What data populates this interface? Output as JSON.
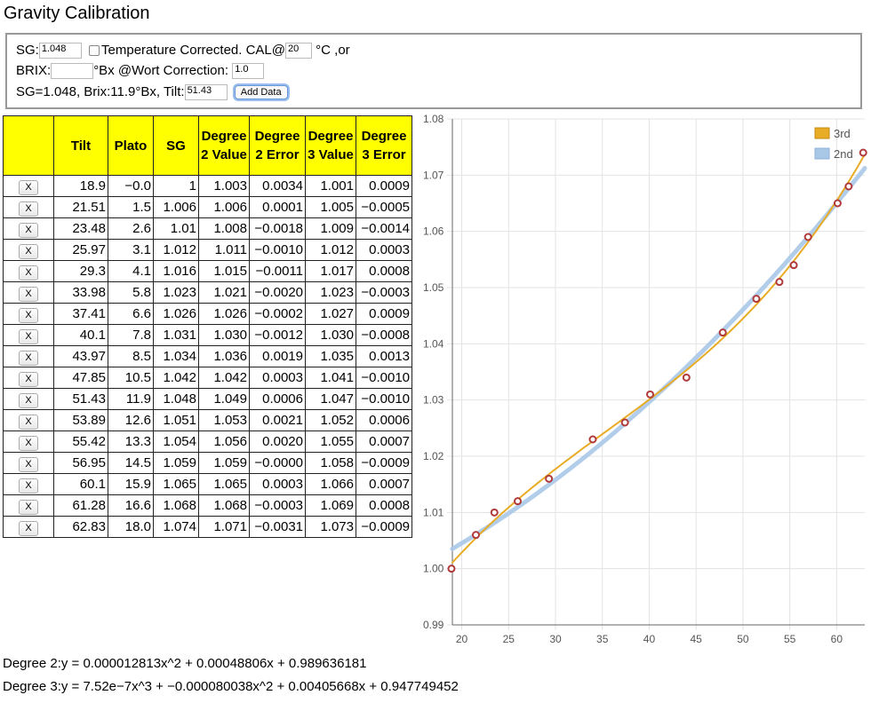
{
  "title": "Gravity Calibration",
  "form": {
    "sg_label": "SG:",
    "sg_value": "1.048",
    "temp_label": "Temperature Corrected. CAL@",
    "cal_temp": "20",
    "temp_unit": "°C ,or",
    "brix_label": "BRIX:",
    "brix_value": "",
    "brix_unit": "°Bx @Wort Correction:",
    "wort_correction": "1.0",
    "status_text": "SG=1.048, Brix:11.9°Bx, Tilt:",
    "tilt_value": "51.43",
    "add_button": "Add Data"
  },
  "table": {
    "headers": [
      "",
      "Tilt",
      "Plato",
      "SG",
      "Degree 2 Value",
      "Degree 2 Error",
      "Degree 3 Value",
      "Degree 3 Error"
    ],
    "remove_label": "X",
    "rows": [
      [
        "18.9",
        "−0.0",
        "1",
        "1.003",
        "0.0034",
        "1.001",
        "0.0009"
      ],
      [
        "21.51",
        "1.5",
        "1.006",
        "1.006",
        "0.0001",
        "1.005",
        "−0.0005"
      ],
      [
        "23.48",
        "2.6",
        "1.01",
        "1.008",
        "−0.0018",
        "1.009",
        "−0.0014"
      ],
      [
        "25.97",
        "3.1",
        "1.012",
        "1.011",
        "−0.0010",
        "1.012",
        "0.0003"
      ],
      [
        "29.3",
        "4.1",
        "1.016",
        "1.015",
        "−0.0011",
        "1.017",
        "0.0008"
      ],
      [
        "33.98",
        "5.8",
        "1.023",
        "1.021",
        "−0.0020",
        "1.023",
        "−0.0003"
      ],
      [
        "37.41",
        "6.6",
        "1.026",
        "1.026",
        "−0.0002",
        "1.027",
        "0.0009"
      ],
      [
        "40.1",
        "7.8",
        "1.031",
        "1.030",
        "−0.0012",
        "1.030",
        "−0.0008"
      ],
      [
        "43.97",
        "8.5",
        "1.034",
        "1.036",
        "0.0019",
        "1.035",
        "0.0013"
      ],
      [
        "47.85",
        "10.5",
        "1.042",
        "1.042",
        "0.0003",
        "1.041",
        "−0.0010"
      ],
      [
        "51.43",
        "11.9",
        "1.048",
        "1.049",
        "0.0006",
        "1.047",
        "−0.0010"
      ],
      [
        "53.89",
        "12.6",
        "1.051",
        "1.053",
        "0.0021",
        "1.052",
        "0.0006"
      ],
      [
        "55.42",
        "13.3",
        "1.054",
        "1.056",
        "0.0020",
        "1.055",
        "0.0007"
      ],
      [
        "56.95",
        "14.5",
        "1.059",
        "1.059",
        "−0.0000",
        "1.058",
        "−0.0009"
      ],
      [
        "60.1",
        "15.9",
        "1.065",
        "1.065",
        "0.0003",
        "1.066",
        "0.0007"
      ],
      [
        "61.28",
        "16.6",
        "1.068",
        "1.068",
        "−0.0003",
        "1.069",
        "0.0008"
      ],
      [
        "62.83",
        "18.0",
        "1.074",
        "1.071",
        "−0.0031",
        "1.073",
        "−0.0009"
      ]
    ]
  },
  "chart_data": {
    "type": "scatter",
    "xlim": [
      19,
      63
    ],
    "ylim": [
      0.99,
      1.08
    ],
    "xticks": [
      "20",
      "25",
      "30",
      "35",
      "40",
      "45",
      "50",
      "55",
      "60"
    ],
    "yticks": [
      "0.99",
      "1.00",
      "1.01",
      "1.02",
      "1.03",
      "1.04",
      "1.05",
      "1.06",
      "1.07",
      "1.08"
    ],
    "grid": true,
    "legend_position": "top-right",
    "points": [
      [
        18.9,
        1.0
      ],
      [
        21.51,
        1.006
      ],
      [
        23.48,
        1.01
      ],
      [
        25.97,
        1.012
      ],
      [
        29.3,
        1.016
      ],
      [
        33.98,
        1.023
      ],
      [
        37.41,
        1.026
      ],
      [
        40.1,
        1.031
      ],
      [
        43.97,
        1.034
      ],
      [
        47.85,
        1.042
      ],
      [
        51.43,
        1.048
      ],
      [
        53.89,
        1.051
      ],
      [
        55.42,
        1.054
      ],
      [
        56.95,
        1.059
      ],
      [
        60.1,
        1.065
      ],
      [
        61.28,
        1.068
      ],
      [
        62.83,
        1.074
      ]
    ],
    "series": [
      {
        "name": "3rd",
        "color": "#e8ac26",
        "coeffs": [
          7.52e-07,
          -8.0038e-05,
          0.00405668,
          0.947749452
        ]
      },
      {
        "name": "2nd",
        "color": "#a9c8e8",
        "coeffs": [
          0,
          1.2813e-05,
          0.00048806,
          0.989636181
        ]
      }
    ],
    "point_color": "#b03a3a"
  },
  "equations": {
    "degree2": "Degree 2:y = 0.000012813x^2 + 0.00048806x + 0.989636181",
    "degree3": "Degree 3:y = 7.52e−7x^3 + −0.000080038x^2 + 0.00405668x + 0.947749452"
  }
}
